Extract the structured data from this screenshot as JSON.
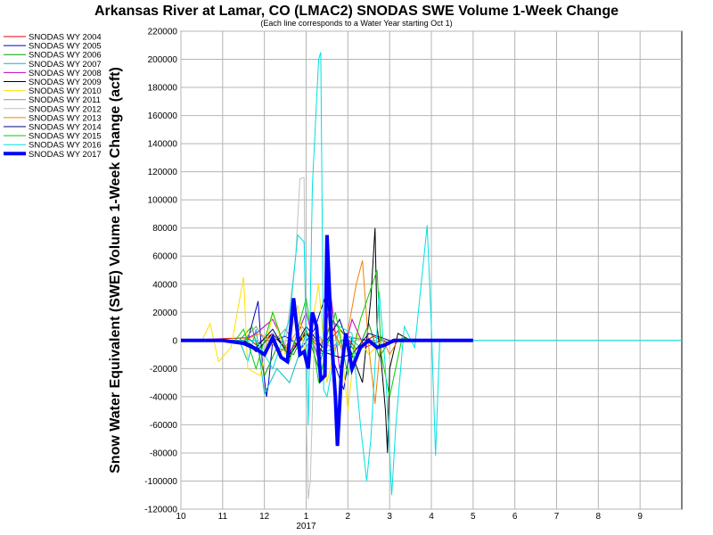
{
  "chart_data": {
    "type": "line",
    "title": "Arkansas River at Lamar, CO (LMAC2) SNODAS SWE Volume 1-Week Change",
    "subtitle": "(Each line corresponds to a Water Year starting Oct 1)",
    "ylabel": "Snow Water Equivalent (SWE) Volume 1-Week Change (acft)",
    "xlabel": "",
    "ylim": [
      -120000,
      220000
    ],
    "y_ticks": [
      "220000",
      "200000",
      "180000",
      "160000",
      "140000",
      "120000",
      "100000",
      "80000",
      "60000",
      "40000",
      "20000",
      "0",
      "-20000",
      "-40000",
      "-60000",
      "-80000",
      "-100000",
      "-120000"
    ],
    "x_ticks": [
      "10",
      "11",
      "12",
      "1",
      "2",
      "3",
      "4",
      "5",
      "6",
      "7",
      "8",
      "9"
    ],
    "x_year_label": "2017",
    "grid": true,
    "legend_position": "left",
    "x_unit": "month_of_water_year",
    "series": [
      {
        "name": "SNODAS WY 2004",
        "color": "#e00000",
        "width": 1,
        "points": [
          [
            0,
            0
          ],
          [
            1.6,
            2000
          ],
          [
            1.8,
            -3000
          ],
          [
            2.2,
            5000
          ],
          [
            2.6,
            -8000
          ],
          [
            3.0,
            6000
          ],
          [
            3.4,
            -5000
          ],
          [
            3.8,
            8000
          ],
          [
            4.2,
            -6000
          ],
          [
            4.6,
            3000
          ],
          [
            5.0,
            -2000
          ],
          [
            5.3,
            0
          ]
        ]
      },
      {
        "name": "SNODAS WY 2005",
        "color": "#0000c8",
        "width": 1,
        "points": [
          [
            0,
            0
          ],
          [
            1.6,
            0
          ],
          [
            1.85,
            28000
          ],
          [
            1.95,
            -15000
          ],
          [
            2.05,
            -40000
          ],
          [
            2.1,
            -30000
          ],
          [
            2.2,
            0
          ],
          [
            2.5,
            3000
          ],
          [
            2.9,
            -5000
          ],
          [
            3.2,
            8000
          ],
          [
            3.5,
            35000
          ],
          [
            3.6,
            -10000
          ],
          [
            3.9,
            -35000
          ],
          [
            4.1,
            2000
          ],
          [
            4.5,
            0
          ]
        ]
      },
      {
        "name": "SNODAS WY 2006",
        "color": "#00a000",
        "width": 1,
        "points": [
          [
            0,
            0
          ],
          [
            1.4,
            0
          ],
          [
            1.7,
            10000
          ],
          [
            2.0,
            -25000
          ],
          [
            2.3,
            -5000
          ],
          [
            2.7,
            -10000
          ],
          [
            3.0,
            8000
          ],
          [
            3.3,
            -20000
          ],
          [
            3.6,
            15000
          ],
          [
            3.9,
            5000
          ],
          [
            4.2,
            -10000
          ],
          [
            4.5,
            12000
          ],
          [
            4.75,
            -12000
          ],
          [
            5.0,
            0
          ]
        ]
      },
      {
        "name": "SNODAS WY 2007",
        "color": "#00c0c0",
        "width": 1,
        "points": [
          [
            0,
            0
          ],
          [
            1.4,
            0
          ],
          [
            1.6,
            -15000
          ],
          [
            1.8,
            8000
          ],
          [
            2.0,
            -38000
          ],
          [
            2.3,
            -20000
          ],
          [
            2.6,
            -30000
          ],
          [
            3.0,
            5000
          ],
          [
            3.3,
            -10000
          ],
          [
            3.7,
            -5000
          ],
          [
            4.0,
            3000
          ],
          [
            4.3,
            -5000
          ],
          [
            4.6,
            0
          ]
        ]
      },
      {
        "name": "SNODAS WY 2008",
        "color": "#c000c0",
        "width": 1,
        "points": [
          [
            0,
            0
          ],
          [
            1.5,
            0
          ],
          [
            1.8,
            5000
          ],
          [
            2.2,
            15000
          ],
          [
            2.6,
            -10000
          ],
          [
            3.0,
            20000
          ],
          [
            3.3,
            -15000
          ],
          [
            3.6,
            30000
          ],
          [
            3.8,
            -20000
          ],
          [
            4.1,
            15000
          ],
          [
            4.4,
            -5000
          ],
          [
            4.8,
            0
          ]
        ]
      },
      {
        "name": "SNODAS WY 2009",
        "color": "#000000",
        "width": 1,
        "points": [
          [
            0,
            0
          ],
          [
            1.5,
            0
          ],
          [
            1.8,
            -8000
          ],
          [
            2.2,
            5000
          ],
          [
            2.6,
            -10000
          ],
          [
            3.0,
            5000
          ],
          [
            3.4,
            -8000
          ],
          [
            3.8,
            -12000
          ],
          [
            4.1,
            -10000
          ],
          [
            4.35,
            -30000
          ],
          [
            4.55,
            30000
          ],
          [
            4.65,
            80000
          ],
          [
            4.7,
            10000
          ],
          [
            4.8,
            -15000
          ],
          [
            4.9,
            -50000
          ],
          [
            4.95,
            -80000
          ],
          [
            5.0,
            -20000
          ],
          [
            5.2,
            5000
          ],
          [
            5.5,
            0
          ]
        ]
      },
      {
        "name": "SNODAS WY 2010",
        "color": "#ffe000",
        "width": 1,
        "points": [
          [
            0,
            0
          ],
          [
            0.5,
            0
          ],
          [
            0.7,
            12000
          ],
          [
            0.9,
            -15000
          ],
          [
            1.2,
            -5000
          ],
          [
            1.5,
            45000
          ],
          [
            1.6,
            -20000
          ],
          [
            1.9,
            -25000
          ],
          [
            2.2,
            20000
          ],
          [
            2.5,
            -10000
          ],
          [
            2.8,
            25000
          ],
          [
            3.0,
            -15000
          ],
          [
            3.3,
            40000
          ],
          [
            3.5,
            -30000
          ],
          [
            3.8,
            10000
          ],
          [
            4.0,
            -50000
          ],
          [
            4.2,
            5000
          ],
          [
            4.5,
            -10000
          ],
          [
            4.8,
            0
          ]
        ]
      },
      {
        "name": "SNODAS WY 2011",
        "color": "#909090",
        "width": 1,
        "points": [
          [
            0,
            0
          ],
          [
            1.5,
            0
          ],
          [
            1.8,
            10000
          ],
          [
            2.1,
            -5000
          ],
          [
            2.5,
            8000
          ],
          [
            2.9,
            -10000
          ],
          [
            3.2,
            5000
          ],
          [
            3.6,
            -5000
          ],
          [
            4.0,
            3000
          ],
          [
            4.4,
            0
          ]
        ]
      },
      {
        "name": "SNODAS WY 2012",
        "color": "#c0c0c0",
        "width": 1,
        "points": [
          [
            0,
            0
          ],
          [
            1.6,
            0
          ],
          [
            1.9,
            -10000
          ],
          [
            2.2,
            5000
          ],
          [
            2.5,
            -3000
          ],
          [
            2.75,
            60000
          ],
          [
            2.85,
            115000
          ],
          [
            2.95,
            116000
          ],
          [
            3.0,
            -50000
          ],
          [
            3.05,
            -113000
          ],
          [
            3.1,
            -100000
          ],
          [
            3.2,
            5000
          ],
          [
            3.5,
            0
          ]
        ]
      },
      {
        "name": "SNODAS WY 2013",
        "color": "#f08000",
        "width": 1,
        "points": [
          [
            0,
            0
          ],
          [
            1.5,
            0
          ],
          [
            1.9,
            5000
          ],
          [
            2.4,
            -8000
          ],
          [
            2.9,
            10000
          ],
          [
            3.3,
            -5000
          ],
          [
            3.6,
            12000
          ],
          [
            3.9,
            -10000
          ],
          [
            4.2,
            40000
          ],
          [
            4.35,
            57000
          ],
          [
            4.5,
            -5000
          ],
          [
            4.65,
            -45000
          ],
          [
            4.8,
            3000
          ],
          [
            5.0,
            -10000
          ],
          [
            5.2,
            0
          ]
        ]
      },
      {
        "name": "SNODAS WY 2014",
        "color": "#000080",
        "width": 1,
        "points": [
          [
            0,
            0
          ],
          [
            1.5,
            0
          ],
          [
            1.8,
            -5000
          ],
          [
            2.2,
            8000
          ],
          [
            2.6,
            -12000
          ],
          [
            3.0,
            10000
          ],
          [
            3.4,
            -5000
          ],
          [
            3.8,
            15000
          ],
          [
            4.1,
            -10000
          ],
          [
            4.5,
            5000
          ],
          [
            5.0,
            0
          ]
        ]
      },
      {
        "name": "SNODAS WY 2015",
        "color": "#00d000",
        "width": 1,
        "points": [
          [
            0,
            0
          ],
          [
            1.3,
            0
          ],
          [
            1.5,
            8000
          ],
          [
            1.8,
            -20000
          ],
          [
            2.2,
            20000
          ],
          [
            2.6,
            -15000
          ],
          [
            3.0,
            30000
          ],
          [
            3.3,
            -30000
          ],
          [
            3.7,
            20000
          ],
          [
            4.0,
            -25000
          ],
          [
            4.3,
            15000
          ],
          [
            4.7,
            50000
          ],
          [
            4.8,
            -10000
          ],
          [
            5.0,
            -40000
          ],
          [
            5.3,
            2000
          ],
          [
            5.6,
            0
          ]
        ]
      },
      {
        "name": "SNODAS WY 2016",
        "color": "#00e0e0",
        "width": 1,
        "points": [
          [
            0,
            0
          ],
          [
            1.8,
            0
          ],
          [
            2.2,
            -20000
          ],
          [
            2.6,
            15000
          ],
          [
            2.8,
            75000
          ],
          [
            2.95,
            70000
          ],
          [
            3.05,
            -60000
          ],
          [
            3.15,
            110000
          ],
          [
            3.3,
            200000
          ],
          [
            3.35,
            205000
          ],
          [
            3.42,
            -35000
          ],
          [
            3.5,
            -40000
          ],
          [
            3.8,
            10000
          ],
          [
            4.1,
            5000
          ],
          [
            4.3,
            -60000
          ],
          [
            4.45,
            -100000
          ],
          [
            4.55,
            -70000
          ],
          [
            4.75,
            35000
          ],
          [
            4.9,
            -20000
          ],
          [
            5.05,
            -110000
          ],
          [
            5.15,
            -60000
          ],
          [
            5.35,
            10000
          ],
          [
            5.6,
            -5000
          ],
          [
            5.9,
            82000
          ],
          [
            6.0,
            10000
          ],
          [
            6.1,
            -82000
          ],
          [
            6.2,
            0
          ],
          [
            6.6,
            0
          ],
          [
            10.0,
            0
          ],
          [
            12.0,
            0
          ]
        ]
      },
      {
        "name": "SNODAS WY 2017",
        "color": "#0000ff",
        "width": 4,
        "points": [
          [
            0,
            0
          ],
          [
            0.5,
            0
          ],
          [
            1.0,
            0
          ],
          [
            1.5,
            -2000
          ],
          [
            1.8,
            -6000
          ],
          [
            2.0,
            -10000
          ],
          [
            2.2,
            2000
          ],
          [
            2.4,
            -12000
          ],
          [
            2.55,
            -15000
          ],
          [
            2.7,
            30000
          ],
          [
            2.85,
            -10000
          ],
          [
            2.95,
            -8000
          ],
          [
            3.05,
            -20000
          ],
          [
            3.15,
            20000
          ],
          [
            3.25,
            10000
          ],
          [
            3.35,
            -28000
          ],
          [
            3.45,
            -25000
          ],
          [
            3.5,
            75000
          ],
          [
            3.55,
            40000
          ],
          [
            3.6,
            5000
          ],
          [
            3.7,
            -40000
          ],
          [
            3.75,
            -75000
          ],
          [
            3.85,
            -20000
          ],
          [
            3.95,
            5000
          ],
          [
            4.1,
            -20000
          ],
          [
            4.3,
            -5000
          ],
          [
            4.5,
            0
          ],
          [
            4.7,
            -5000
          ],
          [
            4.9,
            -3000
          ],
          [
            5.1,
            0
          ],
          [
            5.5,
            0
          ],
          [
            6.0,
            0
          ],
          [
            7.0,
            0
          ]
        ]
      }
    ]
  }
}
